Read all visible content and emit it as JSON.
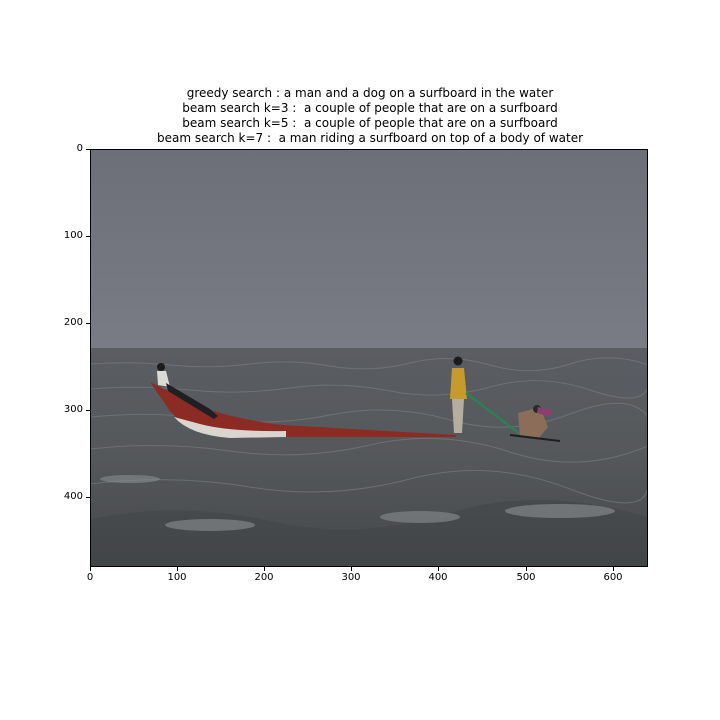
{
  "captions": [
    "greedy search : a man and a dog on a surfboard in the water",
    "beam search k=3 :  a couple of people that are on a surfboard",
    "beam search k=5 :  a couple of people that are on a surfboard",
    "beam search k=7 :  a man riding a surfboard on top of a body of water"
  ],
  "axes": {
    "x_ticks": [
      "0",
      "100",
      "200",
      "300",
      "400",
      "500",
      "600"
    ],
    "y_ticks": [
      "0",
      "100",
      "200",
      "300",
      "400"
    ]
  }
}
